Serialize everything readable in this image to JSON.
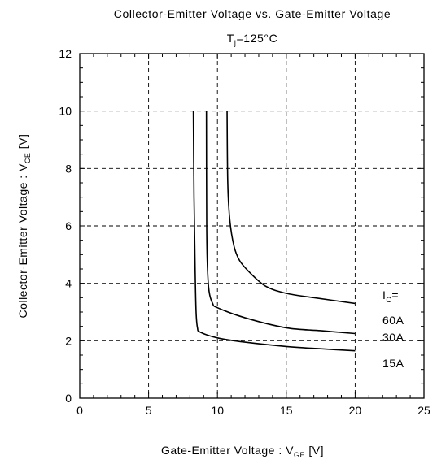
{
  "chart_data": {
    "type": "line",
    "title": "Collector-Emitter Voltage vs. Gate-Emitter Voltage",
    "subtitle": {
      "main": "T",
      "sub": "j",
      "rest": "=125°C"
    },
    "xlabel": {
      "main": "Gate-Emitter Voltage  :  V",
      "sub": "GE",
      "rest": "  [V]"
    },
    "ylabel": {
      "main": "Collector-Emitter Voltage  :  V",
      "sub": "CE",
      "rest": "  [V]"
    },
    "xlim": [
      0,
      25
    ],
    "ylim": [
      0,
      12
    ],
    "x_ticks": [
      "0",
      "5",
      "10",
      "15",
      "20",
      "25"
    ],
    "y_ticks": [
      "0",
      "2",
      "4",
      "6",
      "8",
      "10",
      "12"
    ],
    "grid": true,
    "series_header": {
      "main": "I",
      "sub": "C",
      "rest": "="
    },
    "series": [
      {
        "name": "60A",
        "points": [
          [
            10.7,
            10.0
          ],
          [
            10.75,
            7.5
          ],
          [
            10.9,
            6.2
          ],
          [
            11.2,
            5.3
          ],
          [
            11.6,
            4.8
          ],
          [
            12.3,
            4.4
          ],
          [
            13.5,
            3.9
          ],
          [
            15.0,
            3.65
          ],
          [
            17.0,
            3.5
          ],
          [
            20.0,
            3.3
          ]
        ]
      },
      {
        "name": "30A",
        "points": [
          [
            9.2,
            10.0
          ],
          [
            9.22,
            6.0
          ],
          [
            9.28,
            4.5
          ],
          [
            9.4,
            3.7
          ],
          [
            9.65,
            3.3
          ],
          [
            10.0,
            3.15
          ],
          [
            12.0,
            2.8
          ],
          [
            15.0,
            2.45
          ],
          [
            17.5,
            2.35
          ],
          [
            20.0,
            2.25
          ]
        ]
      },
      {
        "name": "15A",
        "points": [
          [
            8.25,
            10.0
          ],
          [
            8.3,
            7.0
          ],
          [
            8.38,
            4.5
          ],
          [
            8.45,
            3.0
          ],
          [
            8.55,
            2.45
          ],
          [
            8.75,
            2.3
          ],
          [
            10.0,
            2.1
          ],
          [
            12.0,
            1.95
          ],
          [
            15.0,
            1.8
          ],
          [
            17.5,
            1.72
          ],
          [
            20.0,
            1.65
          ]
        ]
      }
    ]
  }
}
